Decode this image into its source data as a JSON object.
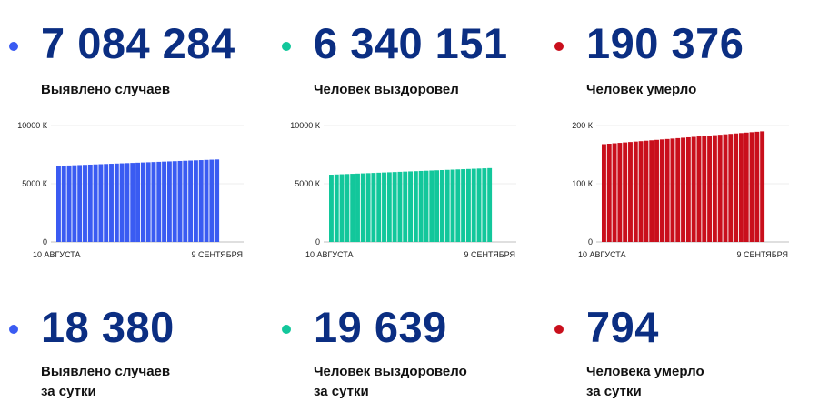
{
  "colors": {
    "blue": "#3a5bf2",
    "green": "#12c79b",
    "red": "#c90f1c",
    "number": "#0b2e82"
  },
  "totals": [
    {
      "value": "7 084 284",
      "label": "Выявлено случаев"
    },
    {
      "value": "6 340 151",
      "label": "Человек выздоровел"
    },
    {
      "value": "190 376",
      "label": "Человек умерло"
    }
  ],
  "daily": [
    {
      "value": "18 380",
      "label_line1": "Выявлено случаев",
      "label_line2": "за сутки"
    },
    {
      "value": "19 639",
      "label_line1": "Человек выздоровело",
      "label_line2": "за сутки"
    },
    {
      "value": "794",
      "label_line1": "Человека умерло",
      "label_line2": "за сутки"
    }
  ],
  "chart_data": [
    {
      "type": "bar",
      "series_name": "Выявлено случаев",
      "color": "#3a5bf2",
      "x_start": "10 АВГУСТА",
      "x_end": "9 СЕНТЯБРЯ",
      "bar_count": 31,
      "y_first": 6532,
      "y_last": 7084,
      "ylim": [
        0,
        10000
      ],
      "yticks": [
        0,
        5000,
        10000
      ],
      "ytick_labels": [
        "0",
        "5000 К",
        "10000 К"
      ],
      "grid": true
    },
    {
      "type": "bar",
      "series_name": "Человек выздоровел",
      "color": "#12c79b",
      "x_start": "10 АВГУСТА",
      "x_end": "9 СЕНТЯБРЯ",
      "bar_count": 31,
      "y_first": 5780,
      "y_last": 6340,
      "ylim": [
        0,
        10000
      ],
      "yticks": [
        0,
        5000,
        10000
      ],
      "ytick_labels": [
        "0",
        "5000 К",
        "10000 К"
      ],
      "grid": true
    },
    {
      "type": "bar",
      "series_name": "Человек умерло",
      "color": "#c90f1c",
      "x_start": "10 АВГУСТА",
      "x_end": "9 СЕНТЯБРЯ",
      "bar_count": 31,
      "y_first": 168,
      "y_last": 190,
      "ylim": [
        0,
        200
      ],
      "yticks": [
        0,
        100,
        200
      ],
      "ytick_labels": [
        "0",
        "100 К",
        "200 К"
      ],
      "grid": true
    }
  ]
}
